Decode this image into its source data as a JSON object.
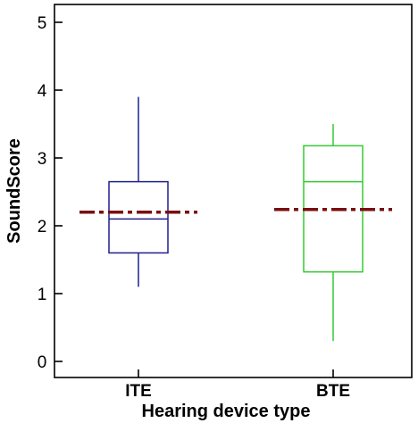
{
  "chart_data": {
    "type": "box",
    "title": "",
    "xlabel": "Hearing device type",
    "ylabel": "SoundScore",
    "ylim": [
      -0.3,
      5.3
    ],
    "yticks": [
      0,
      1,
      2,
      3,
      4,
      5
    ],
    "grid": false,
    "categories": [
      "ITE",
      "BTE"
    ],
    "series": [
      {
        "category": "ITE",
        "color": "#1f1f8f",
        "min": 1.1,
        "q1": 1.6,
        "median": 2.1,
        "q3": 2.65,
        "max": 3.9,
        "mean": 2.2,
        "mean_color": "#7a0f0f"
      },
      {
        "category": "BTE",
        "color": "#33cc33",
        "min": 0.3,
        "q1": 1.32,
        "median": 2.65,
        "q3": 3.18,
        "max": 3.5,
        "mean": 2.24,
        "mean_color": "#7a0f0f"
      }
    ]
  }
}
